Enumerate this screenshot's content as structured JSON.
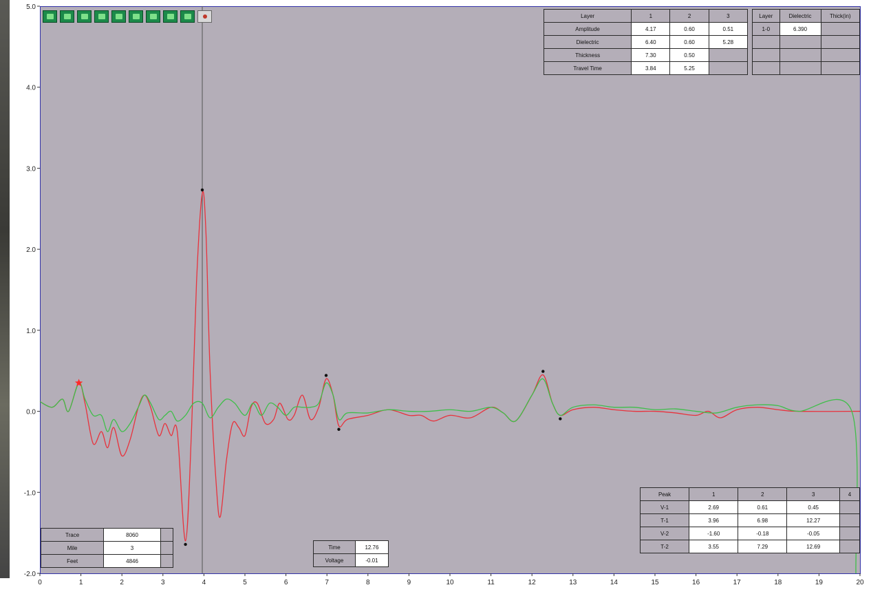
{
  "toolbar": {
    "buttons": [
      "zoom-in-icon",
      "pan-icon",
      "trace-icon",
      "layer-icon",
      "marker-icon",
      "peak-icon",
      "save-icon",
      "print-icon",
      "settings-icon",
      "close-icon"
    ]
  },
  "layer_table": {
    "headers": [
      "Layer",
      "1",
      "2",
      "3"
    ],
    "rows": [
      {
        "label": "Amplitude",
        "values": [
          "4.17",
          "0.60",
          "0.51"
        ]
      },
      {
        "label": "Dielectric",
        "values": [
          "6.40",
          "0.60",
          "5.28"
        ]
      },
      {
        "label": "Thickness",
        "values": [
          "7.30",
          "0.50",
          ""
        ]
      },
      {
        "label": "Travel Time",
        "values": [
          "3.84",
          "5.25",
          ""
        ]
      }
    ]
  },
  "dielectric_table": {
    "headers": [
      "Layer",
      "Dielectric",
      "Thick(in)"
    ],
    "rows": [
      [
        "1-0",
        "6.390",
        ""
      ],
      [
        "",
        "",
        ""
      ],
      [
        "",
        "",
        ""
      ],
      [
        "",
        "",
        ""
      ]
    ]
  },
  "peak_table": {
    "headers": [
      "Peak",
      "1",
      "2",
      "3",
      "4"
    ],
    "rows": [
      {
        "label": "V-1",
        "values": [
          "2.69",
          "0.61",
          "0.45",
          ""
        ]
      },
      {
        "label": "T-1",
        "values": [
          "3.96",
          "6.98",
          "12.27",
          ""
        ]
      },
      {
        "label": "V-2",
        "values": [
          "-1.60",
          "-0.18",
          "-0.05",
          ""
        ]
      },
      {
        "label": "T-2",
        "values": [
          "3.55",
          "7.29",
          "12.69",
          ""
        ]
      }
    ]
  },
  "trace_table": {
    "rows": [
      {
        "label": "Trace",
        "value": "8060"
      },
      {
        "label": "Mile",
        "value": "3"
      },
      {
        "label": "Feet",
        "value": "4846"
      }
    ]
  },
  "cursor_table": {
    "rows": [
      {
        "label": "Time",
        "value": "12.76"
      },
      {
        "label": "Voltage",
        "value": "-0.01"
      }
    ]
  },
  "chart_data": {
    "type": "line",
    "xlim": [
      0,
      20
    ],
    "ylim": [
      -2.0,
      5.0
    ],
    "x_ticks": [
      "0",
      "1",
      "2",
      "3",
      "4",
      "5",
      "6",
      "7",
      "8",
      "9",
      "10",
      "11",
      "12",
      "13",
      "14",
      "15",
      "16",
      "17",
      "18",
      "19",
      "20"
    ],
    "y_ticks": [
      "5.0",
      "4.0",
      "3.0",
      "2.0",
      "1.0",
      "0.0",
      "-1.0",
      "-2.0"
    ],
    "cursor_x": 3.96,
    "series": [
      {
        "color": "#e8323c",
        "points": [
          [
            0,
            0.12
          ],
          [
            0.3,
            0.05
          ],
          [
            0.55,
            0.15
          ],
          [
            0.7,
            0.0
          ],
          [
            0.95,
            0.35
          ],
          [
            1.1,
            0.1
          ],
          [
            1.3,
            -0.4
          ],
          [
            1.5,
            -0.25
          ],
          [
            1.65,
            -0.45
          ],
          [
            1.8,
            -0.2
          ],
          [
            2.0,
            -0.55
          ],
          [
            2.2,
            -0.35
          ],
          [
            2.4,
            0.05
          ],
          [
            2.55,
            0.2
          ],
          [
            2.7,
            0.05
          ],
          [
            2.9,
            -0.3
          ],
          [
            3.05,
            -0.15
          ],
          [
            3.2,
            -0.3
          ],
          [
            3.35,
            -0.25
          ],
          [
            3.55,
            -1.6
          ],
          [
            3.7,
            -0.2
          ],
          [
            3.82,
            1.6
          ],
          [
            3.96,
            2.69
          ],
          [
            4.05,
            2.2
          ],
          [
            4.15,
            0.5
          ],
          [
            4.3,
            -0.9
          ],
          [
            4.4,
            -1.3
          ],
          [
            4.55,
            -0.6
          ],
          [
            4.7,
            -0.15
          ],
          [
            4.85,
            -0.2
          ],
          [
            5.0,
            -0.3
          ],
          [
            5.15,
            0.05
          ],
          [
            5.3,
            0.1
          ],
          [
            5.5,
            -0.15
          ],
          [
            5.7,
            -0.1
          ],
          [
            5.85,
            0.1
          ],
          [
            6.05,
            -0.1
          ],
          [
            6.2,
            -0.05
          ],
          [
            6.4,
            0.2
          ],
          [
            6.6,
            -0.1
          ],
          [
            6.8,
            0.05
          ],
          [
            6.98,
            0.4
          ],
          [
            7.15,
            0.2
          ],
          [
            7.29,
            -0.18
          ],
          [
            7.5,
            -0.1
          ],
          [
            8.0,
            -0.05
          ],
          [
            8.5,
            0.02
          ],
          [
            9.0,
            -0.05
          ],
          [
            9.3,
            -0.05
          ],
          [
            9.6,
            -0.12
          ],
          [
            10.0,
            -0.05
          ],
          [
            10.5,
            -0.08
          ],
          [
            11.0,
            0.05
          ],
          [
            11.3,
            -0.02
          ],
          [
            11.6,
            -0.12
          ],
          [
            12.0,
            0.2
          ],
          [
            12.27,
            0.45
          ],
          [
            12.5,
            0.1
          ],
          [
            12.69,
            -0.05
          ],
          [
            13.0,
            0.02
          ],
          [
            13.5,
            0.05
          ],
          [
            14.0,
            0.02
          ],
          [
            14.5,
            0.0
          ],
          [
            15.0,
            0.0
          ],
          [
            15.5,
            -0.02
          ],
          [
            16.0,
            -0.05
          ],
          [
            16.3,
            0.0
          ],
          [
            16.6,
            -0.08
          ],
          [
            17.0,
            0.02
          ],
          [
            17.5,
            0.05
          ],
          [
            18.0,
            0.02
          ],
          [
            18.5,
            0.0
          ],
          [
            20.0,
            0.0
          ]
        ]
      },
      {
        "color": "#3fbe4a",
        "points": [
          [
            0,
            0.12
          ],
          [
            0.3,
            0.05
          ],
          [
            0.55,
            0.15
          ],
          [
            0.7,
            0.0
          ],
          [
            0.95,
            0.35
          ],
          [
            1.1,
            0.15
          ],
          [
            1.3,
            -0.05
          ],
          [
            1.5,
            -0.05
          ],
          [
            1.65,
            -0.25
          ],
          [
            1.8,
            -0.1
          ],
          [
            2.0,
            -0.25
          ],
          [
            2.2,
            -0.15
          ],
          [
            2.4,
            0.05
          ],
          [
            2.55,
            0.2
          ],
          [
            2.7,
            0.1
          ],
          [
            2.9,
            -0.1
          ],
          [
            3.05,
            -0.05
          ],
          [
            3.2,
            0.0
          ],
          [
            3.35,
            -0.12
          ],
          [
            3.55,
            -0.05
          ],
          [
            3.75,
            0.1
          ],
          [
            3.96,
            0.1
          ],
          [
            4.15,
            -0.08
          ],
          [
            4.35,
            0.05
          ],
          [
            4.55,
            0.15
          ],
          [
            4.75,
            0.1
          ],
          [
            5.0,
            -0.05
          ],
          [
            5.2,
            0.1
          ],
          [
            5.4,
            -0.05
          ],
          [
            5.6,
            0.1
          ],
          [
            5.8,
            0.05
          ],
          [
            6.0,
            -0.05
          ],
          [
            6.2,
            0.05
          ],
          [
            6.4,
            0.05
          ],
          [
            6.6,
            0.05
          ],
          [
            6.8,
            0.1
          ],
          [
            6.98,
            0.35
          ],
          [
            7.15,
            0.2
          ],
          [
            7.29,
            -0.1
          ],
          [
            7.5,
            -0.02
          ],
          [
            8.0,
            -0.02
          ],
          [
            8.5,
            0.02
          ],
          [
            9.0,
            0.0
          ],
          [
            9.5,
            0.0
          ],
          [
            10.0,
            0.02
          ],
          [
            10.5,
            0.0
          ],
          [
            11.0,
            0.05
          ],
          [
            11.3,
            -0.02
          ],
          [
            11.6,
            -0.12
          ],
          [
            12.0,
            0.2
          ],
          [
            12.27,
            0.4
          ],
          [
            12.5,
            0.1
          ],
          [
            12.69,
            -0.05
          ],
          [
            13.0,
            0.05
          ],
          [
            13.5,
            0.08
          ],
          [
            14.0,
            0.05
          ],
          [
            14.5,
            0.05
          ],
          [
            15.0,
            0.02
          ],
          [
            15.5,
            0.03
          ],
          [
            16.0,
            0.0
          ],
          [
            16.5,
            -0.02
          ],
          [
            17.0,
            0.05
          ],
          [
            17.5,
            0.08
          ],
          [
            18.0,
            0.07
          ],
          [
            18.5,
            0.0
          ],
          [
            19.8,
            0.0
          ],
          [
            19.9,
            -2.0
          ]
        ]
      }
    ],
    "markers": [
      [
        3.96,
        2.69
      ],
      [
        3.55,
        -1.6
      ],
      [
        6.98,
        0.4
      ],
      [
        7.29,
        -0.18
      ],
      [
        12.27,
        0.45
      ],
      [
        12.69,
        -0.05
      ]
    ],
    "start_marker": [
      0.95,
      0.35
    ]
  }
}
